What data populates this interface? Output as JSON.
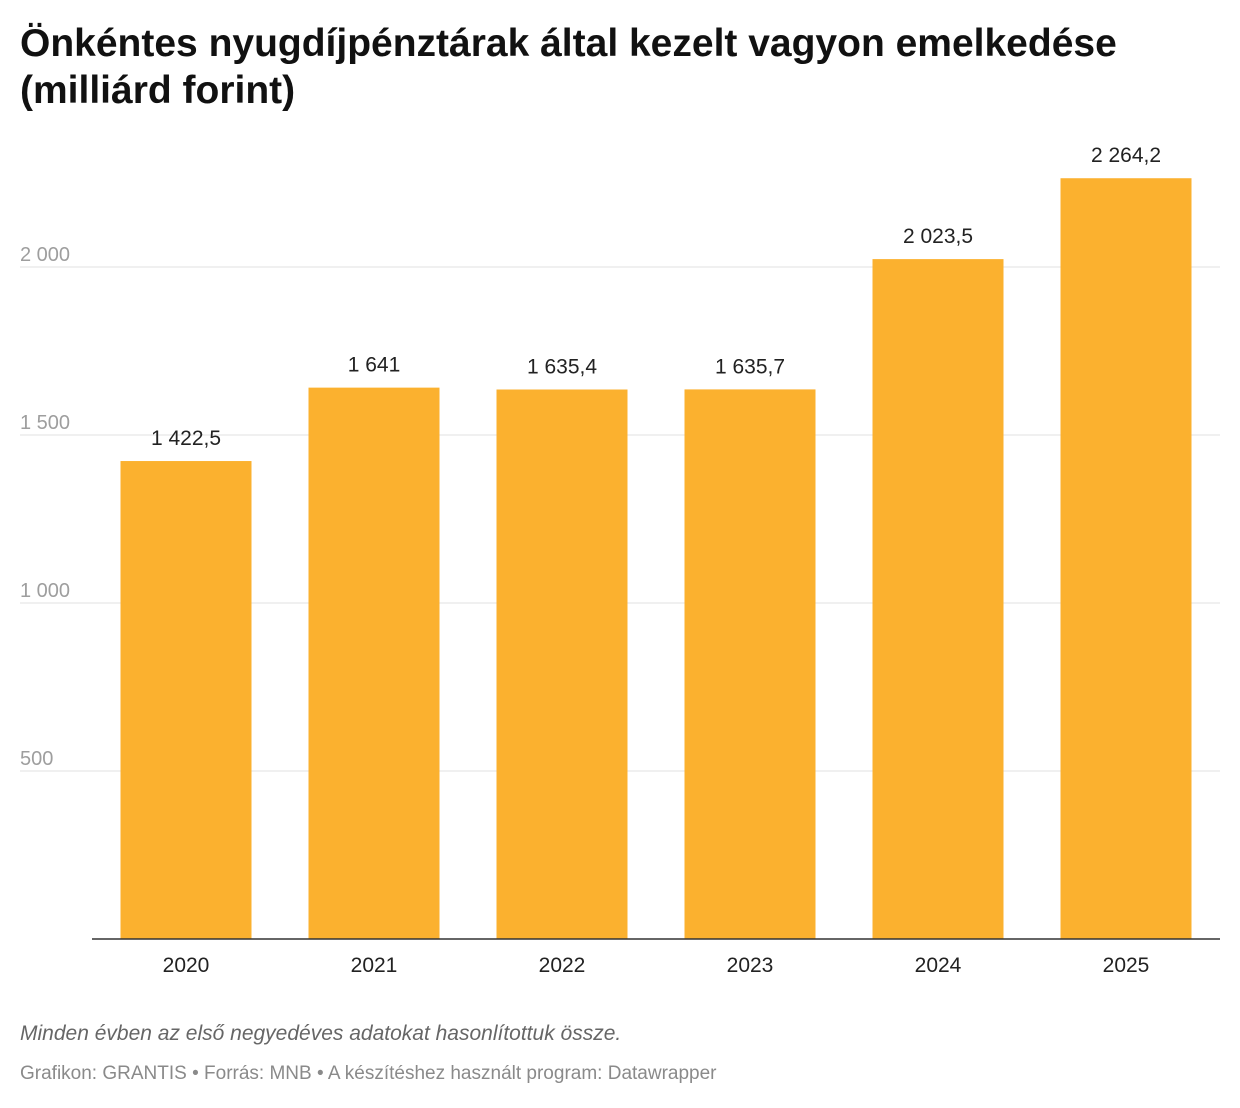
{
  "title": "Önkéntes nyugdíjpénztárak által kezelt vagyon emelkedése (milliárd forint)",
  "note": "Minden évben az első negyedéves adatokat hasonlítottuk össze.",
  "credits": "Grafikon: GRANTIS • Forrás: MNB • A készítéshez használt program: Datawrapper",
  "colors": {
    "bar": "#fbb12f",
    "gridline": "#e1e1e1",
    "baseline": "#333333"
  },
  "chart_data": {
    "type": "bar",
    "title": "Önkéntes nyugdíjpénztárak által kezelt vagyon emelkedése (milliárd forint)",
    "categories": [
      "2020",
      "2021",
      "2022",
      "2023",
      "2024",
      "2025"
    ],
    "values": [
      1422.5,
      1641,
      1635.4,
      1635.7,
      2023.5,
      2264.2
    ],
    "value_labels": [
      "1 422,5",
      "1 641",
      "1 635,4",
      "1 635,7",
      "2 023,5",
      "2 264,2"
    ],
    "yticks": [
      500,
      1000,
      1500,
      2000
    ],
    "ytick_labels": [
      "500",
      "1 000",
      "1 500",
      "2 000"
    ],
    "ylim": [
      0,
      2264.2
    ],
    "grid": true,
    "legend": "none",
    "xlabel": "",
    "ylabel": ""
  }
}
